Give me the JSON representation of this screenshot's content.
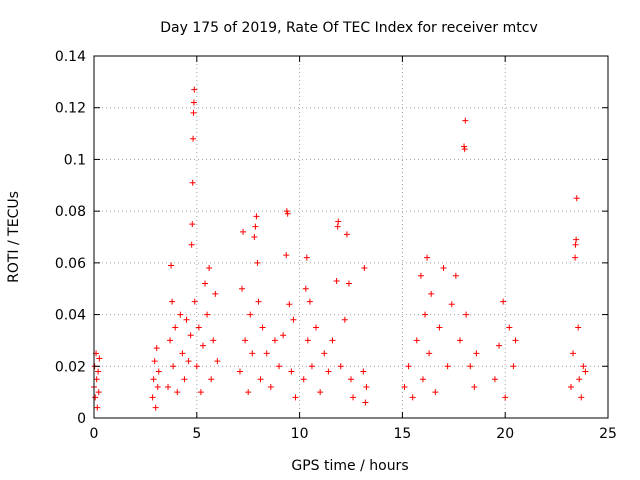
{
  "chart_data": {
    "type": "scatter",
    "title": "Day 175 of 2019, Rate Of TEC Index for receiver mtcv",
    "xlabel": "GPS time / hours",
    "ylabel": "ROTI / TECUs",
    "xlim": [
      0,
      25
    ],
    "ylim": [
      0,
      0.14
    ],
    "xticks": [
      0,
      5,
      10,
      15,
      20,
      25
    ],
    "yticks": [
      0,
      0.02,
      0.04,
      0.06,
      0.08,
      0.1,
      0.12,
      0.14
    ],
    "xtick_labels": [
      "0",
      "5",
      "10",
      "15",
      "20",
      "25"
    ],
    "ytick_labels": [
      "0",
      "0.02",
      "0.04",
      "0.06",
      "0.08",
      "0.1",
      "0.12",
      "0.14"
    ],
    "grid": true,
    "marker": "+",
    "color": "#ff0000",
    "series": [
      {
        "name": "ROTI",
        "points": [
          [
            0.0,
            0.012
          ],
          [
            0.03,
            0.02
          ],
          [
            0.06,
            0.008
          ],
          [
            0.1,
            0.025
          ],
          [
            0.13,
            0.015
          ],
          [
            0.16,
            0.004
          ],
          [
            0.2,
            0.018
          ],
          [
            0.23,
            0.01
          ],
          [
            0.26,
            0.023
          ],
          [
            2.85,
            0.008
          ],
          [
            2.9,
            0.015
          ],
          [
            2.95,
            0.022
          ],
          [
            3.0,
            0.004
          ],
          [
            3.05,
            0.027
          ],
          [
            3.1,
            0.012
          ],
          [
            3.15,
            0.018
          ],
          [
            3.6,
            0.012
          ],
          [
            3.7,
            0.03
          ],
          [
            3.75,
            0.059
          ],
          [
            3.8,
            0.045
          ],
          [
            3.85,
            0.02
          ],
          [
            3.95,
            0.035
          ],
          [
            4.05,
            0.01
          ],
          [
            4.2,
            0.04
          ],
          [
            4.3,
            0.025
          ],
          [
            4.4,
            0.015
          ],
          [
            4.5,
            0.038
          ],
          [
            4.6,
            0.022
          ],
          [
            4.7,
            0.032
          ],
          [
            4.75,
            0.067
          ],
          [
            4.78,
            0.075
          ],
          [
            4.8,
            0.091
          ],
          [
            4.82,
            0.108
          ],
          [
            4.84,
            0.118
          ],
          [
            4.86,
            0.122
          ],
          [
            4.88,
            0.127
          ],
          [
            4.9,
            0.045
          ],
          [
            5.0,
            0.02
          ],
          [
            5.1,
            0.035
          ],
          [
            5.2,
            0.01
          ],
          [
            5.3,
            0.028
          ],
          [
            5.4,
            0.052
          ],
          [
            5.5,
            0.04
          ],
          [
            5.6,
            0.058
          ],
          [
            5.7,
            0.015
          ],
          [
            5.8,
            0.03
          ],
          [
            5.9,
            0.048
          ],
          [
            6.0,
            0.022
          ],
          [
            7.1,
            0.018
          ],
          [
            7.2,
            0.05
          ],
          [
            7.25,
            0.072
          ],
          [
            7.35,
            0.03
          ],
          [
            7.5,
            0.01
          ],
          [
            7.6,
            0.04
          ],
          [
            7.7,
            0.025
          ],
          [
            7.8,
            0.07
          ],
          [
            7.85,
            0.074
          ],
          [
            7.9,
            0.078
          ],
          [
            7.95,
            0.06
          ],
          [
            8.0,
            0.045
          ],
          [
            8.1,
            0.015
          ],
          [
            8.2,
            0.035
          ],
          [
            8.4,
            0.025
          ],
          [
            8.6,
            0.012
          ],
          [
            8.8,
            0.03
          ],
          [
            9.0,
            0.02
          ],
          [
            9.2,
            0.032
          ],
          [
            9.35,
            0.063
          ],
          [
            9.38,
            0.08
          ],
          [
            9.42,
            0.079
          ],
          [
            9.5,
            0.044
          ],
          [
            9.6,
            0.018
          ],
          [
            9.7,
            0.038
          ],
          [
            9.8,
            0.008
          ],
          [
            10.2,
            0.015
          ],
          [
            10.3,
            0.05
          ],
          [
            10.35,
            0.062
          ],
          [
            10.4,
            0.03
          ],
          [
            10.5,
            0.045
          ],
          [
            10.6,
            0.02
          ],
          [
            10.8,
            0.035
          ],
          [
            11.0,
            0.01
          ],
          [
            11.2,
            0.025
          ],
          [
            11.4,
            0.018
          ],
          [
            11.6,
            0.03
          ],
          [
            11.8,
            0.053
          ],
          [
            11.85,
            0.074
          ],
          [
            11.88,
            0.076
          ],
          [
            12.0,
            0.02
          ],
          [
            12.2,
            0.038
          ],
          [
            12.3,
            0.071
          ],
          [
            12.4,
            0.052
          ],
          [
            12.5,
            0.015
          ],
          [
            12.6,
            0.008
          ],
          [
            13.1,
            0.018
          ],
          [
            13.15,
            0.058
          ],
          [
            13.2,
            0.006
          ],
          [
            13.25,
            0.012
          ],
          [
            15.1,
            0.012
          ],
          [
            15.3,
            0.02
          ],
          [
            15.5,
            0.008
          ],
          [
            15.7,
            0.03
          ],
          [
            15.9,
            0.055
          ],
          [
            16.0,
            0.015
          ],
          [
            16.1,
            0.04
          ],
          [
            16.2,
            0.062
          ],
          [
            16.3,
            0.025
          ],
          [
            16.4,
            0.048
          ],
          [
            16.6,
            0.01
          ],
          [
            16.8,
            0.035
          ],
          [
            17.0,
            0.058
          ],
          [
            17.2,
            0.02
          ],
          [
            17.4,
            0.044
          ],
          [
            17.6,
            0.055
          ],
          [
            17.8,
            0.03
          ],
          [
            18.0,
            0.105
          ],
          [
            18.03,
            0.104
          ],
          [
            18.06,
            0.115
          ],
          [
            18.1,
            0.04
          ],
          [
            18.3,
            0.02
          ],
          [
            18.5,
            0.012
          ],
          [
            18.6,
            0.025
          ],
          [
            19.5,
            0.015
          ],
          [
            19.7,
            0.028
          ],
          [
            19.9,
            0.045
          ],
          [
            20.0,
            0.008
          ],
          [
            20.2,
            0.035
          ],
          [
            20.4,
            0.02
          ],
          [
            20.5,
            0.03
          ],
          [
            23.2,
            0.012
          ],
          [
            23.3,
            0.025
          ],
          [
            23.4,
            0.062
          ],
          [
            23.42,
            0.067
          ],
          [
            23.45,
            0.069
          ],
          [
            23.48,
            0.085
          ],
          [
            23.55,
            0.035
          ],
          [
            23.6,
            0.015
          ],
          [
            23.7,
            0.008
          ],
          [
            23.8,
            0.02
          ],
          [
            23.9,
            0.018
          ]
        ]
      }
    ]
  }
}
